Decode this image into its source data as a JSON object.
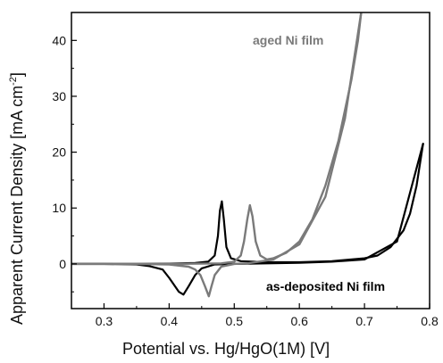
{
  "chart_data": {
    "type": "line",
    "title": "",
    "xlabel": "Potential vs. Hg/HgO(1M)  [V]",
    "ylabel_main": "Apparent Current Density [mA cm",
    "ylabel_sup": "-2",
    "ylabel_end": "]",
    "xlim": [
      0.25,
      0.8
    ],
    "ylim": [
      -8,
      45
    ],
    "xticks": [
      "0.3",
      "0.4",
      "0.5",
      "0.6",
      "0.7",
      "0.8"
    ],
    "yticks": [
      "0",
      "10",
      "20",
      "30",
      "40"
    ],
    "grid": false,
    "legend": "none",
    "series": [
      {
        "name": "as-deposited Ni film",
        "color": "#000000",
        "anodic_x": [
          0.25,
          0.3,
          0.35,
          0.4,
          0.44,
          0.46,
          0.47,
          0.475,
          0.478,
          0.481,
          0.484,
          0.488,
          0.495,
          0.51,
          0.55,
          0.6,
          0.65,
          0.7,
          0.72,
          0.74,
          0.76,
          0.77,
          0.78,
          0.79
        ],
        "anodic_y": [
          0,
          0,
          0,
          0.05,
          0.15,
          0.4,
          1.5,
          5,
          9.5,
          11.2,
          8,
          3,
          1,
          0.5,
          0.3,
          0.3,
          0.5,
          1,
          1.5,
          3,
          6,
          9,
          14,
          21.5
        ],
        "cathodic_x": [
          0.79,
          0.75,
          0.7,
          0.65,
          0.6,
          0.55,
          0.5,
          0.47,
          0.45,
          0.44,
          0.43,
          0.422,
          0.415,
          0.4,
          0.39,
          0.37,
          0.35,
          0.3,
          0.25
        ],
        "cathodic_y": [
          21.5,
          4,
          0.8,
          0.4,
          0.2,
          0.1,
          0,
          -0.1,
          -0.8,
          -2,
          -4,
          -5.5,
          -5,
          -2.5,
          -1,
          -0.4,
          -0.1,
          0,
          0
        ]
      },
      {
        "name": "aged Ni film",
        "color": "#7a7a7a",
        "anodic_x": [
          0.25,
          0.3,
          0.4,
          0.48,
          0.5,
          0.51,
          0.515,
          0.52,
          0.524,
          0.528,
          0.533,
          0.54,
          0.55,
          0.56,
          0.58,
          0.6,
          0.62,
          0.64,
          0.66,
          0.68,
          0.69,
          0.695
        ],
        "anodic_y": [
          0,
          0,
          0,
          0.1,
          0.4,
          1.5,
          4,
          8,
          10.5,
          8.5,
          4,
          1.5,
          0.8,
          1,
          2,
          4,
          8,
          14,
          22,
          33,
          40,
          45
        ],
        "cathodic_x": [
          0.695,
          0.67,
          0.64,
          0.6,
          0.56,
          0.52,
          0.5,
          0.48,
          0.47,
          0.465,
          0.461,
          0.455,
          0.448,
          0.44,
          0.43,
          0.4,
          0.35,
          0.25
        ],
        "cathodic_y": [
          45,
          26,
          12,
          3.5,
          0.8,
          0.1,
          0,
          -0.5,
          -2,
          -4,
          -5.8,
          -4,
          -2,
          -1,
          -0.5,
          -0.1,
          0,
          0
        ]
      }
    ],
    "annotations": [
      {
        "text": "aged Ni film",
        "color": "#7a7a7a"
      },
      {
        "text": "as-deposited Ni film",
        "color": "#000000"
      }
    ]
  }
}
